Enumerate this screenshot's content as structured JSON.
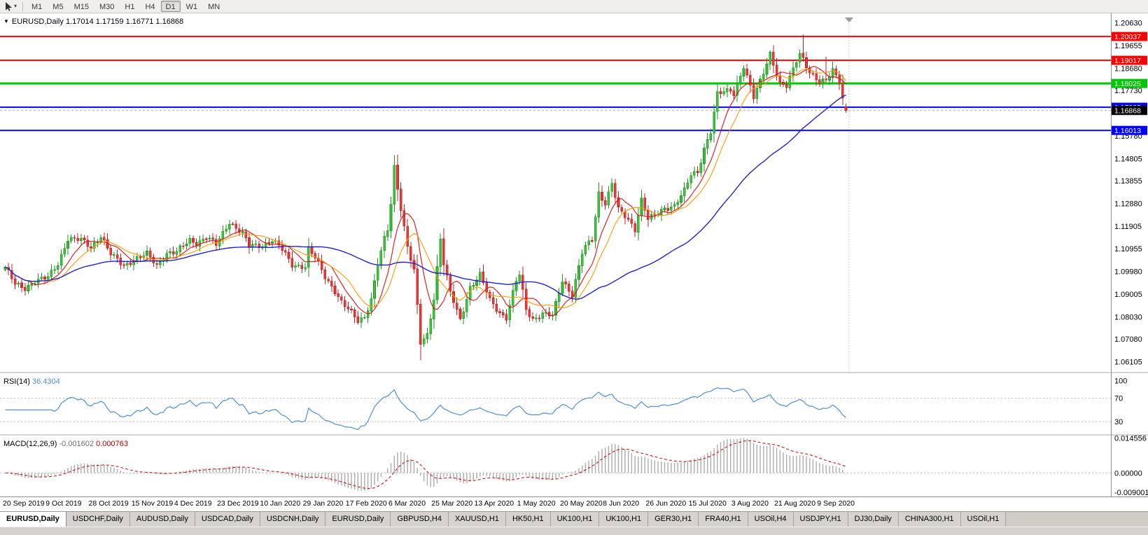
{
  "toolbar": {
    "timeframes": [
      "M1",
      "M5",
      "M15",
      "M30",
      "H1",
      "H4",
      "D1",
      "W1",
      "MN"
    ],
    "selected": "D1"
  },
  "chart": {
    "symbol_title": "EURUSD,Daily",
    "ohlc_text": "1.17014 1.17159 1.16771 1.16868",
    "price_ticks": [
      "1.20630",
      "1.19655",
      "1.18680",
      "1.17730",
      "1.15780",
      "1.14805",
      "1.13855",
      "1.12880",
      "1.11905",
      "1.10955",
      "1.09980",
      "1.09005",
      "1.08030",
      "1.07080",
      "1.06105"
    ],
    "hlines": [
      {
        "label": "1.20037",
        "value": 1.20037,
        "color": "#ff0000",
        "width": 2
      },
      {
        "label": "1.19017",
        "value": 1.19017,
        "color": "#ff0000",
        "width": 2
      },
      {
        "label": "1.18025",
        "value": 1.18025,
        "color": "#00c800",
        "width": 3
      },
      {
        "label": "1.17005",
        "value": 1.17005,
        "color": "#0000ff",
        "width": 2
      },
      {
        "label": "1.16013",
        "value": 1.16013,
        "color": "#0000ff",
        "width": 2
      }
    ],
    "current_price": {
      "label": "1.16868",
      "box_color": "#000000"
    },
    "date_labels": [
      "20 Sep 2019",
      "9 Oct 2019",
      "28 Oct 2019",
      "15 Nov 2019",
      "4 Dec 2019",
      "23 Dec 2019",
      "10 Jan 2020",
      "29 Jan 2020",
      "17 Feb 2020",
      "6 Mar 2020",
      "25 Mar 2020",
      "13 Apr 2020",
      "1 May 2020",
      "20 May 2020",
      "8 Jun 2020",
      "26 Jun 2020",
      "15 Jul 2020",
      "3 Aug 2020",
      "21 Aug 2020",
      "9 Sep 2020"
    ]
  },
  "rsi": {
    "label": "RSI(14)",
    "value": "36.4304",
    "axis_labels": [
      "100",
      "70",
      "30"
    ],
    "levels": [
      70,
      30
    ],
    "line_color": "#4f8fd0"
  },
  "macd": {
    "label": "MACD(12,26,9)",
    "value_main": "-0.001602",
    "value_signal": "0.000763",
    "axis_labels": [
      {
        "text": "0.014556",
        "value": 0.014556
      },
      {
        "text": "0.00000",
        "value": 0
      },
      {
        "text": "-0.009001",
        "value": -0.009001
      }
    ],
    "hist_color": "#ababab",
    "signal_color": "#cc0000"
  },
  "tabs": [
    {
      "label": "EURUSD,Daily",
      "active": true
    },
    {
      "label": "USDCHF,Daily",
      "active": false
    },
    {
      "label": "AUDUSD,Daily",
      "active": false
    },
    {
      "label": "USDCAD,Daily",
      "active": false
    },
    {
      "label": "USDCNH,Daily",
      "active": false
    },
    {
      "label": "EURUSD,Daily",
      "active": false
    },
    {
      "label": "GBPUSD,H4",
      "active": false
    },
    {
      "label": "XAUUSD,H1",
      "active": false
    },
    {
      "label": "HK50,H1",
      "active": false
    },
    {
      "label": "UK100,H1",
      "active": false
    },
    {
      "label": "UK100,H1",
      "active": false
    },
    {
      "label": "GER30,H1",
      "active": false
    },
    {
      "label": "FRA40,H1",
      "active": false
    },
    {
      "label": "USOil,H4",
      "active": false
    },
    {
      "label": "USDJPY,H1",
      "active": false
    },
    {
      "label": "DJ30,Daily",
      "active": false
    },
    {
      "label": "CHINA300,H1",
      "active": false
    },
    {
      "label": "USOil,H1",
      "active": false
    }
  ],
  "chart_data": {
    "type": "candlestick",
    "symbol": "EURUSD",
    "timeframe": "Daily",
    "first_date": "20 Sep 2019",
    "last_date": "21 Sep 2020",
    "candle_count": 256,
    "visible_price_min": 1.057,
    "visible_price_max": 1.2085,
    "close_anchors": [
      [
        0,
        1.1016
      ],
      [
        3,
        1.094
      ],
      [
        6,
        1.0925
      ],
      [
        9,
        1.0958
      ],
      [
        13,
        1.097
      ],
      [
        16,
        1.103
      ],
      [
        19,
        1.114
      ],
      [
        23,
        1.113
      ],
      [
        26,
        1.11
      ],
      [
        29,
        1.1152
      ],
      [
        32,
        1.107
      ],
      [
        36,
        1.102
      ],
      [
        39,
        1.105
      ],
      [
        43,
        1.107
      ],
      [
        46,
        1.1021
      ],
      [
        49,
        1.1078
      ],
      [
        52,
        1.108
      ],
      [
        56,
        1.113
      ],
      [
        58,
        1.112
      ],
      [
        61,
        1.1145
      ],
      [
        64,
        1.111
      ],
      [
        68,
        1.121
      ],
      [
        70,
        1.1185
      ],
      [
        72,
        1.116
      ],
      [
        74,
        1.1103
      ],
      [
        78,
        1.111
      ],
      [
        81,
        1.1132
      ],
      [
        84,
        1.109
      ],
      [
        87,
        1.1025
      ],
      [
        91,
        1.102
      ],
      [
        92,
        1.109
      ],
      [
        94,
        1.1055
      ],
      [
        97,
        1.0975
      ],
      [
        100,
        1.0915
      ],
      [
        102,
        1.0865
      ],
      [
        104,
        1.0834
      ],
      [
        107,
        1.0785
      ],
      [
        109,
        1.0805
      ],
      [
        111,
        1.088
      ],
      [
        113,
        1.1026
      ],
      [
        115,
        1.1134
      ],
      [
        116,
        1.1175
      ],
      [
        117,
        1.1288
      ],
      [
        118,
        1.1445
      ],
      [
        120,
        1.127
      ],
      [
        122,
        1.1105
      ],
      [
        124,
        1.0998
      ],
      [
        126,
        1.069
      ],
      [
        128,
        1.0725
      ],
      [
        130,
        1.0885
      ],
      [
        132,
        1.114
      ],
      [
        133,
        1.103
      ],
      [
        135,
        1.0905
      ],
      [
        138,
        1.0791
      ],
      [
        141,
        1.093
      ],
      [
        144,
        1.098
      ],
      [
        147,
        1.0875
      ],
      [
        150,
        1.0822
      ],
      [
        152,
        1.08
      ],
      [
        155,
        1.0955
      ],
      [
        156,
        1.098
      ],
      [
        158,
        1.0836
      ],
      [
        160,
        1.0795
      ],
      [
        163,
        1.0815
      ],
      [
        166,
        1.0805
      ],
      [
        169,
        1.096
      ],
      [
        172,
        1.0898
      ],
      [
        175,
        1.1075
      ],
      [
        176,
        1.11
      ],
      [
        178,
        1.1135
      ],
      [
        180,
        1.1335
      ],
      [
        182,
        1.129
      ],
      [
        184,
        1.1373
      ],
      [
        186,
        1.126
      ],
      [
        189,
        1.122
      ],
      [
        191,
        1.118
      ],
      [
        193,
        1.1305
      ],
      [
        195,
        1.1219
      ],
      [
        197,
        1.1234
      ],
      [
        200,
        1.127
      ],
      [
        203,
        1.128
      ],
      [
        206,
        1.134
      ],
      [
        208,
        1.1411
      ],
      [
        210,
        1.1425
      ],
      [
        212,
        1.1525
      ],
      [
        214,
        1.1596
      ],
      [
        216,
        1.1754
      ],
      [
        220,
        1.1778
      ],
      [
        221,
        1.1762
      ],
      [
        224,
        1.1875
      ],
      [
        227,
        1.1739
      ],
      [
        229,
        1.1813
      ],
      [
        232,
        1.1934
      ],
      [
        235,
        1.1797
      ],
      [
        237,
        1.1787
      ],
      [
        240,
        1.1903
      ],
      [
        241,
        1.1935
      ],
      [
        242,
        1.1911
      ],
      [
        244,
        1.1851
      ],
      [
        246,
        1.1816
      ],
      [
        247,
        1.1801
      ],
      [
        249,
        1.1815
      ],
      [
        251,
        1.1866
      ],
      [
        253,
        1.1815
      ],
      [
        254,
        1.174
      ],
      [
        255,
        1.16868
      ]
    ],
    "wick_high_overrides": {
      "118": 1.1495,
      "242": 1.2011,
      "249": 1.1917
    },
    "wick_low_overrides": {
      "107": 1.0778,
      "126": 1.0636
    },
    "last_candle": {
      "open": 1.17014,
      "high": 1.17159,
      "low": 1.16771,
      "close": 1.16868
    },
    "moving_averages": [
      {
        "period": 8,
        "color": "#dd1111"
      },
      {
        "period": 13,
        "color": "#ff9900"
      },
      {
        "period": 50,
        "color": "#2222cc"
      }
    ],
    "up_color": "#3ec13e",
    "down_color": "#e23b3b",
    "up_stroke": "#1d941d",
    "down_stroke": "#c02020",
    "rsi_period": 14,
    "macd_params": [
      12,
      26,
      9
    ]
  }
}
